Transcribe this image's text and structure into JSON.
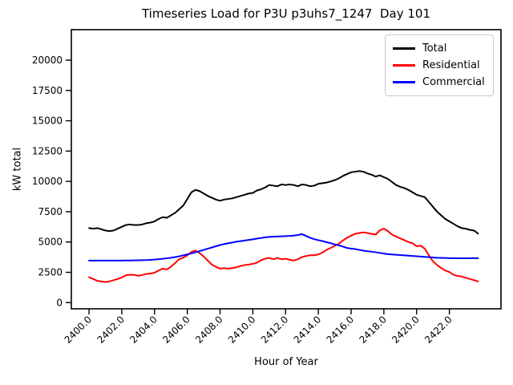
{
  "figure": {
    "background": "#ffffff",
    "title": "Timeseries Load for P3U p3uhs7_1247  Day 101"
  },
  "chart_data": {
    "type": "line",
    "title": "Timeseries Load for P3U p3uhs7_1247  Day 101",
    "xlabel": "Hour of Year",
    "ylabel": "kW total",
    "grid": false,
    "legend_position": "upper right",
    "xlim": [
      2398.92,
      2425.15
    ],
    "ylim": [
      -510,
      22515
    ],
    "xticks": [
      2400,
      2402,
      2404,
      2406,
      2408,
      2410,
      2412,
      2414,
      2416,
      2418,
      2420,
      2422
    ],
    "xtick_labels": [
      "2400.0",
      "2402.0",
      "2404.0",
      "2406.0",
      "2408.0",
      "2410.0",
      "2412.0",
      "2414.0",
      "2416.0",
      "2418.0",
      "2420.0",
      "2422.0"
    ],
    "yticks": [
      0,
      2500,
      5000,
      7500,
      10000,
      12500,
      15000,
      17500,
      20000
    ],
    "ytick_labels": [
      "0",
      "2500",
      "5000",
      "7500",
      "10000",
      "12500",
      "15000",
      "17500",
      "20000"
    ],
    "x_start": 2400.0,
    "x_step": 0.25,
    "x_count": 96,
    "series": [
      {
        "name": "Total",
        "color": "#000000",
        "values": [
          6150,
          6100,
          6150,
          6050,
          5950,
          5900,
          5950,
          6100,
          6250,
          6400,
          6450,
          6400,
          6400,
          6450,
          6550,
          6600,
          6700,
          6900,
          7050,
          7000,
          7200,
          7400,
          7700,
          8000,
          8550,
          9100,
          9300,
          9200,
          9000,
          8800,
          8650,
          8500,
          8400,
          8500,
          8550,
          8600,
          8700,
          8800,
          8900,
          9000,
          9050,
          9250,
          9350,
          9500,
          9700,
          9650,
          9600,
          9750,
          9700,
          9750,
          9700,
          9600,
          9750,
          9700,
          9600,
          9650,
          9800,
          9850,
          9900,
          10000,
          10100,
          10250,
          10450,
          10600,
          10750,
          10800,
          10850,
          10800,
          10650,
          10550,
          10400,
          10500,
          10350,
          10200,
          9950,
          9700,
          9550,
          9450,
          9300,
          9100,
          8900,
          8800,
          8700,
          8300,
          7900,
          7500,
          7200,
          6900,
          6700,
          6500,
          6300,
          6150,
          6100,
          6000,
          5950,
          5700
        ]
      },
      {
        "name": "Residential",
        "color": "#ff0000",
        "values": [
          2100,
          1950,
          1800,
          1750,
          1700,
          1750,
          1850,
          1950,
          2075,
          2250,
          2300,
          2290,
          2210,
          2280,
          2360,
          2400,
          2470,
          2650,
          2800,
          2740,
          2960,
          3250,
          3580,
          3700,
          3900,
          4180,
          4300,
          4090,
          3800,
          3470,
          3135,
          2950,
          2800,
          2850,
          2800,
          2850,
          2915,
          3025,
          3100,
          3135,
          3200,
          3290,
          3500,
          3620,
          3690,
          3580,
          3690,
          3580,
          3620,
          3535,
          3470,
          3580,
          3755,
          3845,
          3910,
          3910,
          3975,
          4130,
          4350,
          4510,
          4685,
          4860,
          5125,
          5345,
          5525,
          5675,
          5740,
          5790,
          5740,
          5675,
          5610,
          5965,
          6100,
          5900,
          5610,
          5450,
          5300,
          5150,
          5000,
          4900,
          4650,
          4700,
          4450,
          3900,
          3400,
          3100,
          2850,
          2650,
          2520,
          2300,
          2200,
          2150,
          2050,
          1950,
          1850,
          1750
        ]
      },
      {
        "name": "Commercial",
        "color": "#0000ff",
        "values": [
          3470,
          3470,
          3470,
          3470,
          3470,
          3470,
          3470,
          3470,
          3470,
          3475,
          3480,
          3485,
          3490,
          3500,
          3510,
          3530,
          3550,
          3580,
          3620,
          3660,
          3700,
          3760,
          3820,
          3900,
          3980,
          4060,
          4150,
          4250,
          4350,
          4450,
          4550,
          4650,
          4750,
          4830,
          4900,
          4960,
          5020,
          5070,
          5120,
          5170,
          5220,
          5280,
          5330,
          5390,
          5420,
          5440,
          5455,
          5470,
          5490,
          5500,
          5525,
          5580,
          5650,
          5500,
          5350,
          5235,
          5150,
          5080,
          4980,
          4905,
          4800,
          4730,
          4620,
          4510,
          4450,
          4420,
          4350,
          4285,
          4240,
          4200,
          4150,
          4100,
          4050,
          4000,
          3975,
          3950,
          3925,
          3900,
          3875,
          3850,
          3825,
          3800,
          3775,
          3750,
          3725,
          3700,
          3690,
          3680,
          3670,
          3665,
          3660,
          3660,
          3660,
          3660,
          3665,
          3670
        ]
      }
    ]
  }
}
